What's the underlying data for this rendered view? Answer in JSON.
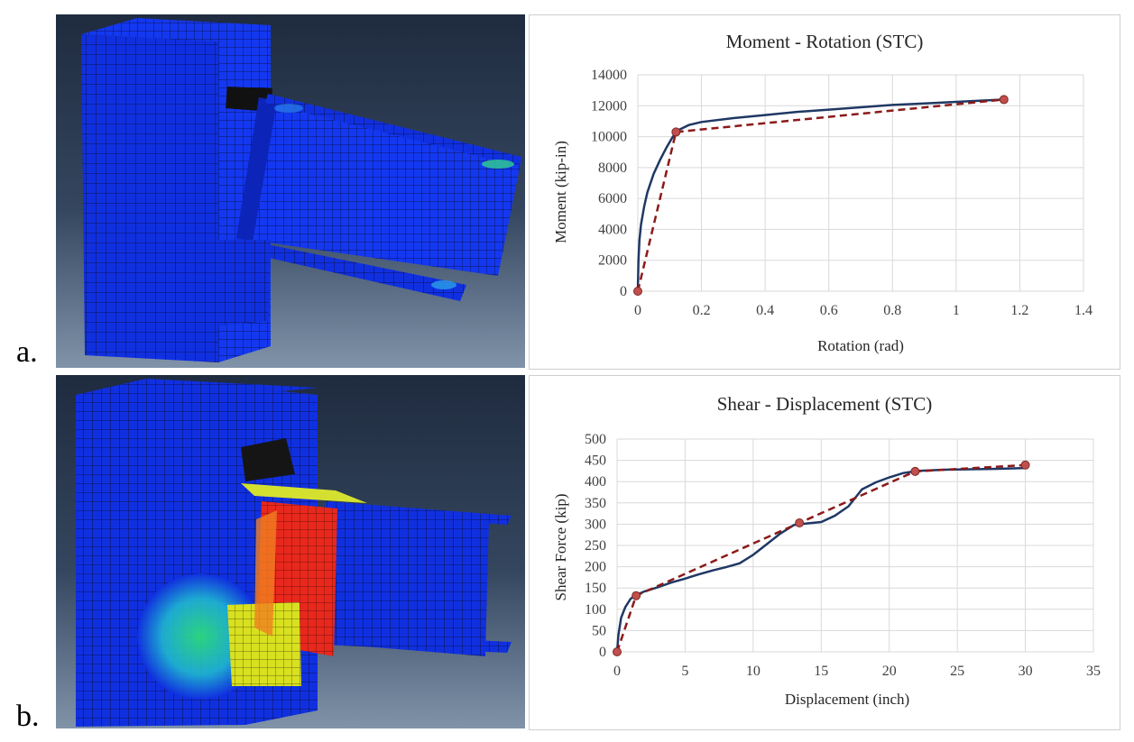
{
  "panels": [
    {
      "label": "a."
    },
    {
      "label": "b."
    }
  ],
  "fea_models": [
    {
      "description": "3D finite element mesh, column-beam connection (panel a)"
    },
    {
      "description": "3D finite element mesh with stress contours (panel b)"
    }
  ],
  "colors": {
    "curve": "#1f3864",
    "bilinear": "#8b1a1a",
    "marker_fill": "#c0504d",
    "marker_stroke": "#7f2623",
    "mesh_blue": "#1030e0"
  },
  "chart_data": [
    {
      "type": "line",
      "title": "Moment - Rotation (STC)",
      "xlabel": "Rotation (rad)",
      "ylabel": "Moment (kip-in)",
      "xlim": [
        0,
        1.4
      ],
      "ylim": [
        0,
        14000
      ],
      "xticks": [
        0,
        0.2,
        0.4,
        0.6,
        0.8,
        1,
        1.2,
        1.4
      ],
      "yticks": [
        0,
        2000,
        4000,
        6000,
        8000,
        10000,
        12000,
        14000
      ],
      "xtick_labels": [
        "0",
        "0.2",
        "0.4",
        "0.6",
        "0.8",
        "1",
        "1.2",
        "1.4"
      ],
      "ytick_labels": [
        "0",
        "2000",
        "4000",
        "6000",
        "8000",
        "10000",
        "12000",
        "14000"
      ],
      "grid": true,
      "series": [
        {
          "style": "solid",
          "x": [
            0,
            0.002,
            0.005,
            0.01,
            0.02,
            0.03,
            0.05,
            0.07,
            0.09,
            0.11,
            0.13,
            0.16,
            0.2,
            0.3,
            0.4,
            0.5,
            0.6,
            0.7,
            0.8,
            0.9,
            1.0,
            1.1,
            1.15
          ],
          "y": [
            0,
            2000,
            3300,
            4300,
            5500,
            6400,
            7600,
            8500,
            9300,
            10000,
            10450,
            10750,
            10950,
            11200,
            11400,
            11600,
            11750,
            11900,
            12050,
            12150,
            12250,
            12350,
            12400
          ]
        },
        {
          "style": "dashed",
          "markers": true,
          "x": [
            0,
            0.12,
            1.15
          ],
          "y": [
            0,
            10300,
            12400
          ]
        }
      ]
    },
    {
      "type": "line",
      "title": "Shear - Displacement (STC)",
      "xlabel": "Displacement (inch)",
      "ylabel": "Shear Force (kip)",
      "xlim": [
        0,
        35
      ],
      "ylim": [
        0,
        500
      ],
      "xticks": [
        0,
        5,
        10,
        15,
        20,
        25,
        30,
        35
      ],
      "yticks": [
        0,
        50,
        100,
        150,
        200,
        250,
        300,
        350,
        400,
        450,
        500
      ],
      "xtick_labels": [
        "0",
        "5",
        "10",
        "15",
        "20",
        "25",
        "30",
        "35"
      ],
      "ytick_labels": [
        "0",
        "50",
        "100",
        "150",
        "200",
        "250",
        "300",
        "350",
        "400",
        "450",
        "500"
      ],
      "grid": true,
      "series": [
        {
          "style": "solid",
          "x": [
            0,
            0.1,
            0.3,
            0.6,
            1.0,
            1.5,
            2,
            3,
            4,
            5,
            6,
            7,
            8,
            9,
            10,
            11,
            12,
            13,
            14,
            15,
            16,
            17,
            18,
            19,
            20,
            21,
            22,
            24,
            26,
            28,
            30
          ],
          "y": [
            0,
            40,
            80,
            105,
            125,
            135,
            142,
            152,
            163,
            172,
            182,
            191,
            199,
            208,
            228,
            253,
            278,
            298,
            302,
            305,
            320,
            342,
            382,
            398,
            410,
            420,
            425,
            428,
            429,
            430,
            432
          ]
        },
        {
          "style": "dashed",
          "markers": true,
          "x": [
            0,
            1.4,
            13.4,
            21.9,
            30
          ],
          "y": [
            0,
            132,
            303,
            424,
            439
          ]
        }
      ]
    }
  ]
}
